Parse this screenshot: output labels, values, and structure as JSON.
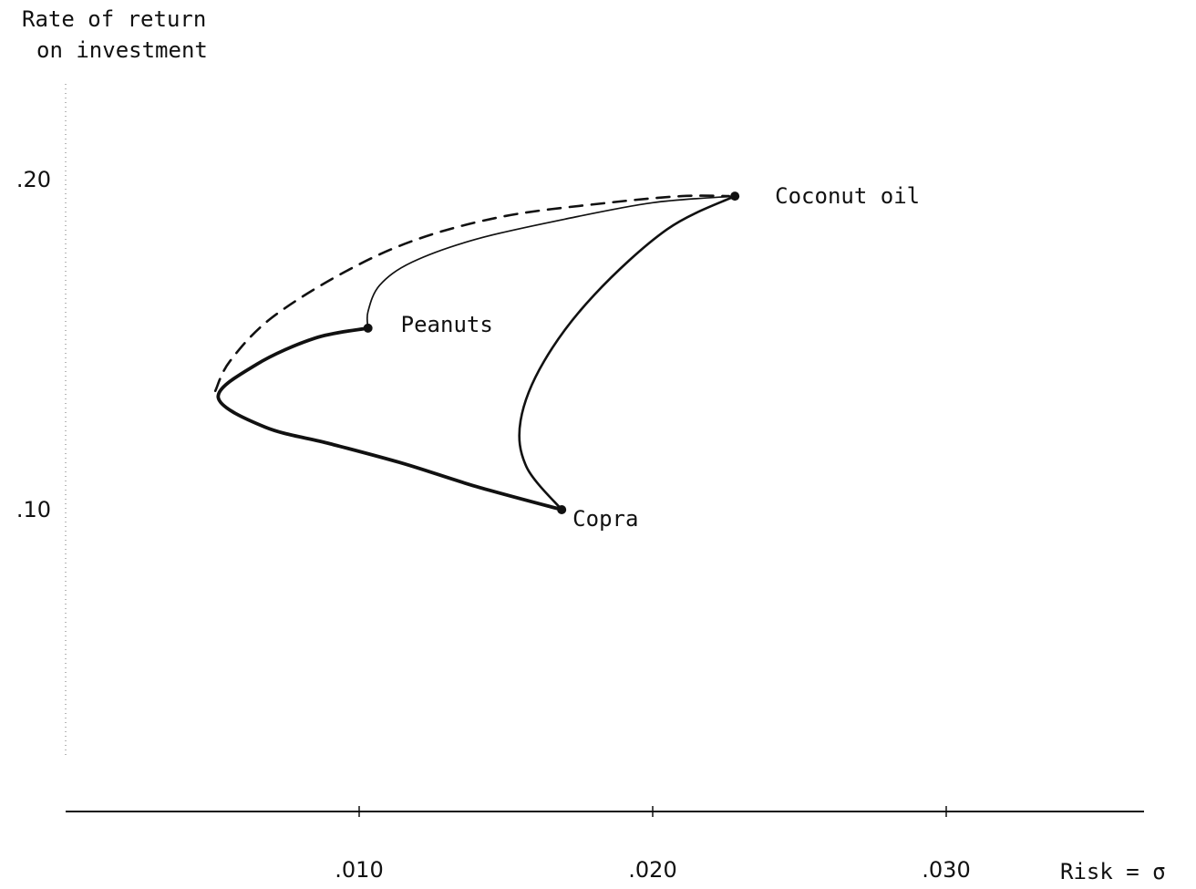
{
  "chart_data": {
    "type": "line",
    "ylabel_line1": "Rate of return",
    "ylabel_line2": "on investment",
    "xlabel": "Risk = σ",
    "x_ticks": [
      {
        "value": 0.01,
        "label": ".010"
      },
      {
        "value": 0.02,
        "label": ".020"
      },
      {
        "value": 0.03,
        "label": ".030"
      }
    ],
    "y_ticks": [
      {
        "value": 0.2,
        "label": ".20"
      },
      {
        "value": 0.1,
        "label": ".10"
      }
    ],
    "xlim": [
      0.0,
      0.0365
    ],
    "ylim": [
      0.03,
      0.23
    ],
    "grid": false,
    "points": [
      {
        "name": "Coconut oil",
        "x": 0.0228,
        "y": 0.195
      },
      {
        "name": "Peanuts",
        "x": 0.0103,
        "y": 0.155
      },
      {
        "name": "Copra",
        "x": 0.0169,
        "y": 0.1
      }
    ],
    "series": [
      {
        "style": "dashed",
        "points": [
          [
            0.0051,
            0.136
          ],
          [
            0.0056,
            0.145
          ],
          [
            0.007,
            0.158
          ],
          [
            0.0095,
            0.172
          ],
          [
            0.012,
            0.182
          ],
          [
            0.015,
            0.189
          ],
          [
            0.0185,
            0.193
          ],
          [
            0.021,
            0.195
          ],
          [
            0.0226,
            0.195
          ]
        ]
      },
      {
        "style": "thin",
        "points": [
          [
            0.0103,
            0.155
          ],
          [
            0.0103,
            0.16
          ],
          [
            0.0107,
            0.168
          ],
          [
            0.0118,
            0.175
          ],
          [
            0.014,
            0.182
          ],
          [
            0.017,
            0.188
          ],
          [
            0.02,
            0.193
          ],
          [
            0.0228,
            0.195
          ]
        ]
      },
      {
        "style": "medium",
        "points": [
          [
            0.0228,
            0.195
          ],
          [
            0.0205,
            0.185
          ],
          [
            0.018,
            0.165
          ],
          [
            0.0163,
            0.145
          ],
          [
            0.0155,
            0.127
          ],
          [
            0.0157,
            0.113
          ],
          [
            0.0169,
            0.1
          ]
        ]
      },
      {
        "style": "thick",
        "points": [
          [
            0.0103,
            0.155
          ],
          [
            0.0085,
            0.152
          ],
          [
            0.0065,
            0.144
          ],
          [
            0.0052,
            0.134
          ],
          [
            0.0068,
            0.125
          ],
          [
            0.009,
            0.12
          ],
          [
            0.0115,
            0.114
          ],
          [
            0.014,
            0.107
          ],
          [
            0.0169,
            0.1
          ]
        ]
      }
    ]
  }
}
